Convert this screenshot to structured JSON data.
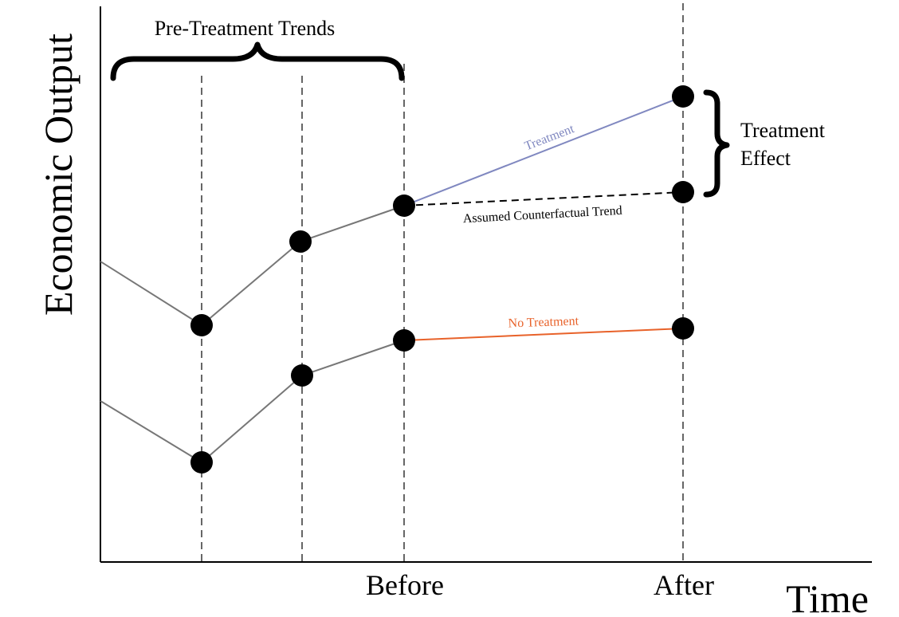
{
  "labels": {
    "y_axis": "Economic Output",
    "x_axis": "Time",
    "before": "Before",
    "after": "After",
    "pre_treatment": "Pre-Treatment Trends",
    "treatment_effect_line1": "Treatment",
    "treatment_effect_line2": "Effect",
    "treatment_line": "Treatment",
    "counterfactual_line": "Assumed Counterfactual Trend",
    "no_treatment_line": "No Treatment"
  },
  "colors": {
    "treatment": "#8088c0",
    "no_treatment": "#e8622a",
    "counterfactual": "#000000",
    "trend": "#777777",
    "guides": "#666666"
  }
}
